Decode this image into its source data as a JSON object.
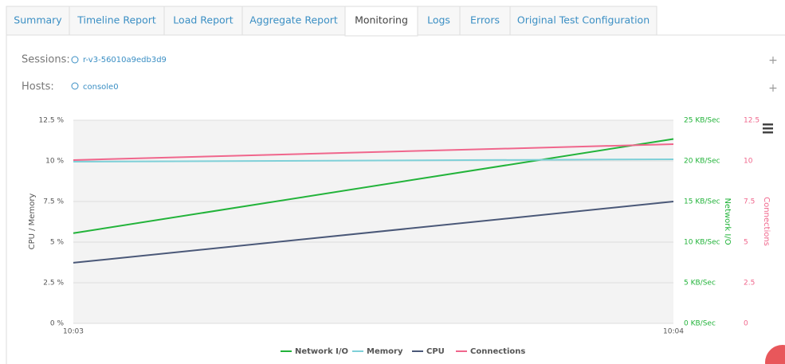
{
  "tabs": [
    "Summary",
    "Timeline Report",
    "Load Report",
    "Aggregate Report",
    "Monitoring",
    "Logs",
    "Errors",
    "Original Test Configuration"
  ],
  "active_tab": "Monitoring",
  "sessions": {
    "label": "Sessions:",
    "value": "r-v3-56010a9edb3d9"
  },
  "hosts": {
    "label": "Hosts:",
    "value": "console0"
  },
  "chart_data": {
    "type": "line",
    "categories": [
      "10:03",
      "10:04"
    ],
    "ylabel": "CPU / Memory",
    "y2label": "Network I/O",
    "y3label": "Connections",
    "ylim": [
      0,
      12.5
    ],
    "yticks": [
      {
        "value": 0,
        "label": "0 %"
      },
      {
        "value": 2.5,
        "label": "2.5 %"
      },
      {
        "value": 5,
        "label": "5 %"
      },
      {
        "value": 7.5,
        "label": "7.5 %"
      },
      {
        "value": 10,
        "label": "10 %"
      },
      {
        "value": 12.5,
        "label": "12.5 %"
      }
    ],
    "y2lim": [
      0,
      25
    ],
    "y2ticks": [
      {
        "value": 0,
        "label": "0 KB/Sec"
      },
      {
        "value": 5,
        "label": "5 KB/Sec"
      },
      {
        "value": 10,
        "label": "10 KB/Sec"
      },
      {
        "value": 15,
        "label": "15 KB/Sec"
      },
      {
        "value": 20,
        "label": "20 KB/Sec"
      },
      {
        "value": 25,
        "label": "25 KB/Sec"
      }
    ],
    "y3lim": [
      0,
      12.5
    ],
    "y3ticks": [
      0,
      2.5,
      5,
      7.5,
      10,
      12.5
    ],
    "grid": true,
    "series": [
      {
        "name": "Network I/O",
        "color": "#22b33a",
        "axis": "y2",
        "values": [
          11.1,
          22.7
        ]
      },
      {
        "name": "Memory",
        "color": "#7fd0d8",
        "axis": "y",
        "values": [
          9.95,
          10.1
        ]
      },
      {
        "name": "CPU",
        "color": "#4a5878",
        "axis": "y",
        "values": [
          3.73,
          7.5
        ]
      },
      {
        "name": "Connections",
        "color": "#f0668c",
        "axis": "y3",
        "values": [
          10.05,
          11.03
        ]
      }
    ]
  }
}
